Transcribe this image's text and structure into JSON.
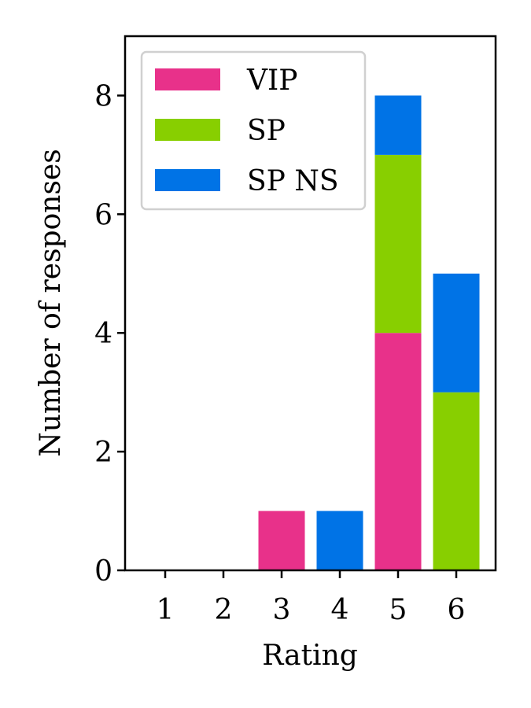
{
  "chart_data": {
    "type": "bar",
    "stacked": true,
    "categories": [
      "1",
      "2",
      "3",
      "4",
      "5",
      "6"
    ],
    "series": [
      {
        "name": "VIP",
        "color": "#e8318a",
        "values": [
          0,
          0,
          1,
          0,
          4,
          0
        ]
      },
      {
        "name": "SP",
        "color": "#88cf00",
        "values": [
          0,
          0,
          0,
          0,
          3,
          3
        ]
      },
      {
        "name": "SP NS",
        "color": "#0073e6",
        "values": [
          0,
          0,
          0,
          1,
          1,
          2
        ]
      }
    ],
    "xlabel": "Rating",
    "ylabel": "Number of responses",
    "ylim": [
      0,
      9
    ],
    "yticks": [
      "0",
      "2",
      "4",
      "6",
      "8"
    ],
    "grid": false,
    "legend_position": "top-left"
  }
}
